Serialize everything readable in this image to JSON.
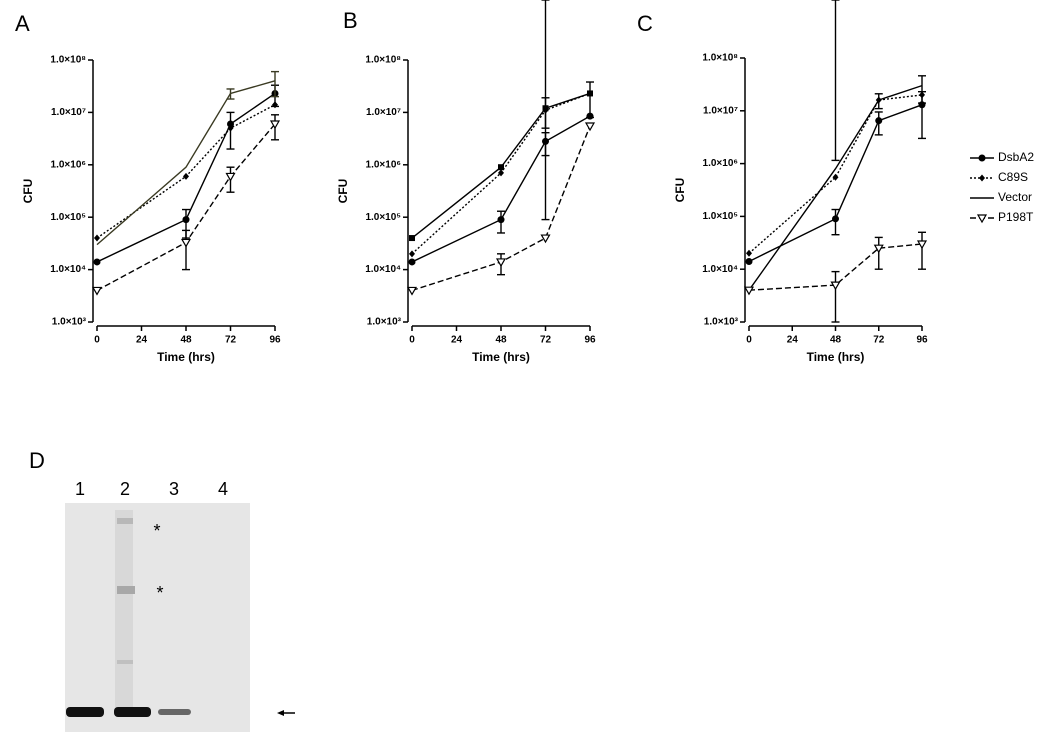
{
  "chart_data": [
    {
      "type": "line",
      "panel": "A",
      "xlabel": "Time (hrs)",
      "ylabel": "CFU",
      "log_y": true,
      "x": [
        0,
        48,
        72,
        96
      ],
      "xlim": [
        0,
        96
      ],
      "xticks": [
        0,
        24,
        48,
        72,
        96
      ],
      "ylim": [
        1000,
        100000000
      ],
      "yticks": [
        {
          "value": 1000,
          "label": "1.0×10³"
        },
        {
          "value": 10000,
          "label": "1.0×10⁴"
        },
        {
          "value": 100000,
          "label": "1.0×10⁵"
        },
        {
          "value": 1000000,
          "label": "1.0×10⁶"
        },
        {
          "value": 10000000,
          "label": "1.0×10⁷"
        },
        {
          "value": 100000000,
          "label": "1.0×10⁸"
        }
      ],
      "series": [
        {
          "color": "#000000",
          "dash": "solid",
          "marker": "circle",
          "values": [
            14000,
            90000,
            6000000,
            23000000
          ],
          "errors": [
            null,
            50000,
            4000000,
            10000000
          ]
        },
        {
          "color": "#000000",
          "dash": "dotted",
          "marker": "diamond",
          "values": [
            40000,
            600000,
            5000000,
            14000000
          ],
          "errors": [
            null,
            null,
            null,
            null
          ]
        },
        {
          "color": "#3a3a22",
          "dash": "solid",
          "marker": "none",
          "values": [
            30000,
            900000,
            23000000,
            40000000
          ],
          "errors": [
            null,
            null,
            5000000,
            20000000
          ]
        },
        {
          "color": "#000000",
          "dash": "dashed",
          "marker": "triangle-down",
          "values": [
            4000,
            33000,
            600000,
            6000000
          ],
          "errors": [
            null,
            23000,
            300000,
            3000000
          ]
        }
      ]
    },
    {
      "type": "line",
      "panel": "B",
      "xlabel": "Time (hrs)",
      "ylabel": "CFU",
      "log_y": true,
      "x": [
        0,
        48,
        72,
        96
      ],
      "xlim": [
        0,
        96
      ],
      "xticks": [
        0,
        24,
        48,
        72,
        96
      ],
      "ylim": [
        1000,
        100000000
      ],
      "yticks": [
        {
          "value": 1000,
          "label": "1.0×10³"
        },
        {
          "value": 10000,
          "label": "1.0×10⁴"
        },
        {
          "value": 100000,
          "label": "1.0×10⁵"
        },
        {
          "value": 1000000,
          "label": "1.0×10⁶"
        },
        {
          "value": 10000000,
          "label": "1.0×10⁷"
        },
        {
          "value": 100000000,
          "label": "1.0×10⁸"
        }
      ],
      "series": [
        {
          "color": "#000000",
          "dash": "solid",
          "marker": "circle",
          "values": [
            14000,
            90000,
            2800000,
            8500000
          ],
          "errors": [
            null,
            40000,
            1300000,
            null
          ]
        },
        {
          "color": "#000000",
          "dash": "dotted",
          "marker": "diamond",
          "values": [
            20000,
            700000,
            11000000,
            23000000
          ],
          "errors": [
            null,
            null,
            null,
            null
          ]
        },
        {
          "color": "#000000",
          "dash": "solid",
          "marker": "square",
          "values": [
            40000,
            900000,
            12000000,
            23000000
          ],
          "errors": [
            null,
            null,
            7000000,
            15000000
          ]
        },
        {
          "color": "#000000",
          "dash": "dashed",
          "marker": "triangle-down",
          "values": [
            4000,
            14000,
            40000,
            5500000
          ],
          "errors": [
            null,
            6000,
            50000,
            null
          ]
        }
      ]
    },
    {
      "type": "line",
      "panel": "C",
      "xlabel": "Time (hrs)",
      "ylabel": "CFU",
      "log_y": true,
      "legend": "right",
      "x": [
        0,
        48,
        72,
        96
      ],
      "xlim": [
        0,
        96
      ],
      "xticks": [
        0,
        24,
        48,
        72,
        96
      ],
      "ylim": [
        1000,
        100000000
      ],
      "yticks": [
        {
          "value": 1000,
          "label": "1.0×10³"
        },
        {
          "value": 10000,
          "label": "1.0×10⁴"
        },
        {
          "value": 100000,
          "label": "1.0×10⁵"
        },
        {
          "value": 1000000,
          "label": "1.0×10⁶"
        },
        {
          "value": 10000000,
          "label": "1.0×10⁷"
        },
        {
          "value": 100000000,
          "label": "1.0×10⁸"
        }
      ],
      "series": [
        {
          "name": "DsbA2",
          "color": "#000000",
          "dash": "solid",
          "marker": "circle",
          "values": [
            14000,
            90000,
            6500000,
            13000000
          ],
          "errors": [
            null,
            45000,
            3000000,
            10000000
          ]
        },
        {
          "name": "C89S",
          "color": "#000000",
          "dash": "dotted",
          "marker": "diamond",
          "values": [
            20000,
            550000,
            16000000,
            20000000
          ],
          "errors": [
            null,
            600000,
            null,
            null
          ]
        },
        {
          "name": "Vector",
          "color": "#000000",
          "dash": "solid",
          "marker": "none",
          "values": [
            4000,
            800000,
            16000000,
            30000000
          ],
          "errors": [
            null,
            null,
            5000000,
            16000000
          ]
        },
        {
          "name": "P198T",
          "color": "#000000",
          "dash": "dashed",
          "marker": "triangle-down",
          "values": [
            4000,
            5000,
            25000,
            30000
          ],
          "errors": [
            null,
            4000,
            15000,
            20000
          ]
        }
      ]
    }
  ],
  "blot": {
    "label": "D",
    "lanes": [
      "1",
      "2",
      "3",
      "4"
    ],
    "annotations": [
      "*",
      "*"
    ]
  }
}
